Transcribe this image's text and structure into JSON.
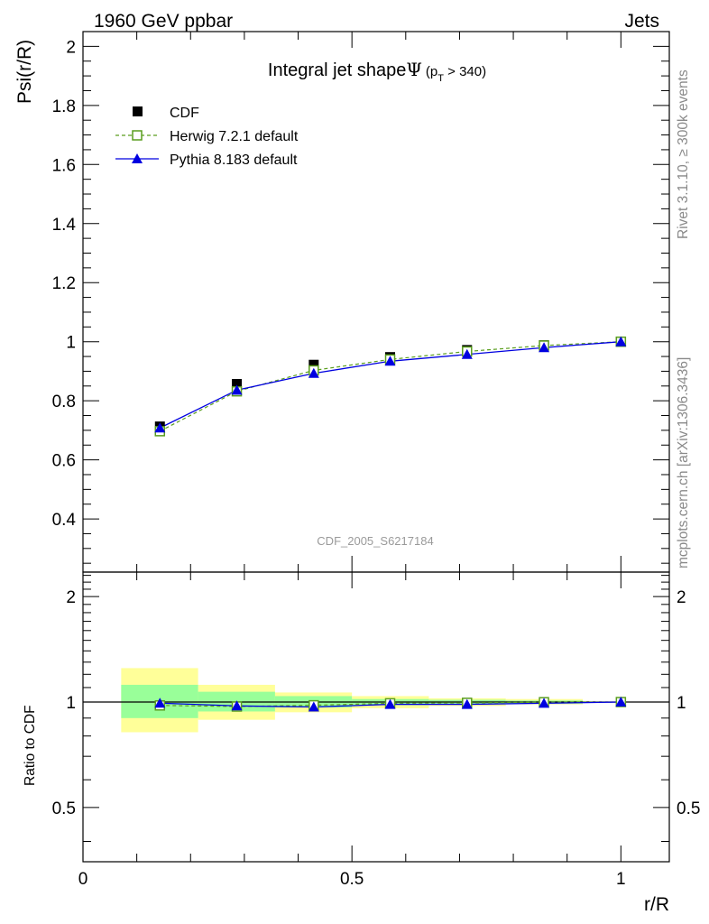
{
  "header": {
    "left_label": "1960 GeV ppbar",
    "right_label": "Jets"
  },
  "side_labels": {
    "rivet": "Rivet 3.1.10, ≥ 300k events",
    "mcplots": "mcplots.cern.ch [arXiv:1306.3436]"
  },
  "watermark": "CDF_2005_S6217184",
  "chart_data": {
    "type": "line",
    "title_main": "Integral jet shape",
    "title_symbol": "Ψ",
    "title_sub_open": "(p",
    "title_sub_T": "T",
    "title_sub_close": " > 340)",
    "xlabel": "r/R",
    "ylabel": "Psi(r/R)",
    "ratio_ylabel": "Ratio to CDF",
    "xlim": [
      0,
      1.09
    ],
    "ylim": [
      0.22,
      2.05
    ],
    "ratio_ylim": [
      0.35,
      2.35
    ],
    "ratio_log": true,
    "x_ticks": [
      0,
      0.5,
      1
    ],
    "x_tick_labels": [
      "0",
      "0.5",
      "1"
    ],
    "y_ticks": [
      0.4,
      0.6,
      0.8,
      1,
      1.2,
      1.4,
      1.6,
      1.8,
      2
    ],
    "y_tick_labels": [
      "0.4",
      "0.6",
      "0.8",
      "1",
      "1.2",
      "1.4",
      "1.6",
      "1.8",
      "2"
    ],
    "ratio_ticks": [
      0.5,
      1,
      2
    ],
    "ratio_tick_labels": [
      "0.5",
      "1",
      "2"
    ],
    "bin_edges": [
      0.071,
      0.214,
      0.357,
      0.5,
      0.643,
      0.786,
      0.929
    ],
    "x": [
      0.143,
      0.286,
      0.429,
      0.571,
      0.714,
      0.857,
      1.0
    ],
    "series": [
      {
        "name": "CDF",
        "marker": "filled-square",
        "color": "#000000",
        "values": [
          0.713,
          0.857,
          0.922,
          0.948,
          0.972,
          0.988,
          1.0
        ]
      },
      {
        "name": "Herwig 7.2.1 default",
        "marker": "open-square",
        "line": "dashed",
        "color": "#5a9e1e",
        "values": [
          0.697,
          0.832,
          0.903,
          0.94,
          0.967,
          0.987,
          1.0
        ],
        "ratio": [
          0.978,
          0.971,
          0.979,
          0.992,
          0.995,
          0.999,
          1.0
        ]
      },
      {
        "name": "Pythia 8.183 default",
        "marker": "filled-triangle",
        "line": "solid",
        "color": "#0000e0",
        "values": [
          0.708,
          0.836,
          0.893,
          0.934,
          0.957,
          0.98,
          1.0
        ],
        "ratio": [
          0.993,
          0.975,
          0.968,
          0.985,
          0.985,
          0.992,
          1.0
        ]
      }
    ],
    "bands": {
      "stat_color": "#99ff99",
      "total_color": "#ffff99",
      "stat": [
        [
          0.9,
          1.12
        ],
        [
          0.94,
          1.07
        ],
        [
          0.965,
          1.04
        ],
        [
          0.98,
          1.02
        ],
        [
          0.985,
          1.015
        ],
        [
          0.99,
          1.01
        ],
        [
          0.995,
          1.005
        ]
      ],
      "total": [
        [
          0.82,
          1.25
        ],
        [
          0.89,
          1.12
        ],
        [
          0.935,
          1.065
        ],
        [
          0.96,
          1.04
        ],
        [
          0.975,
          1.025
        ],
        [
          0.985,
          1.02
        ],
        [
          0.99,
          1.01
        ]
      ]
    }
  }
}
